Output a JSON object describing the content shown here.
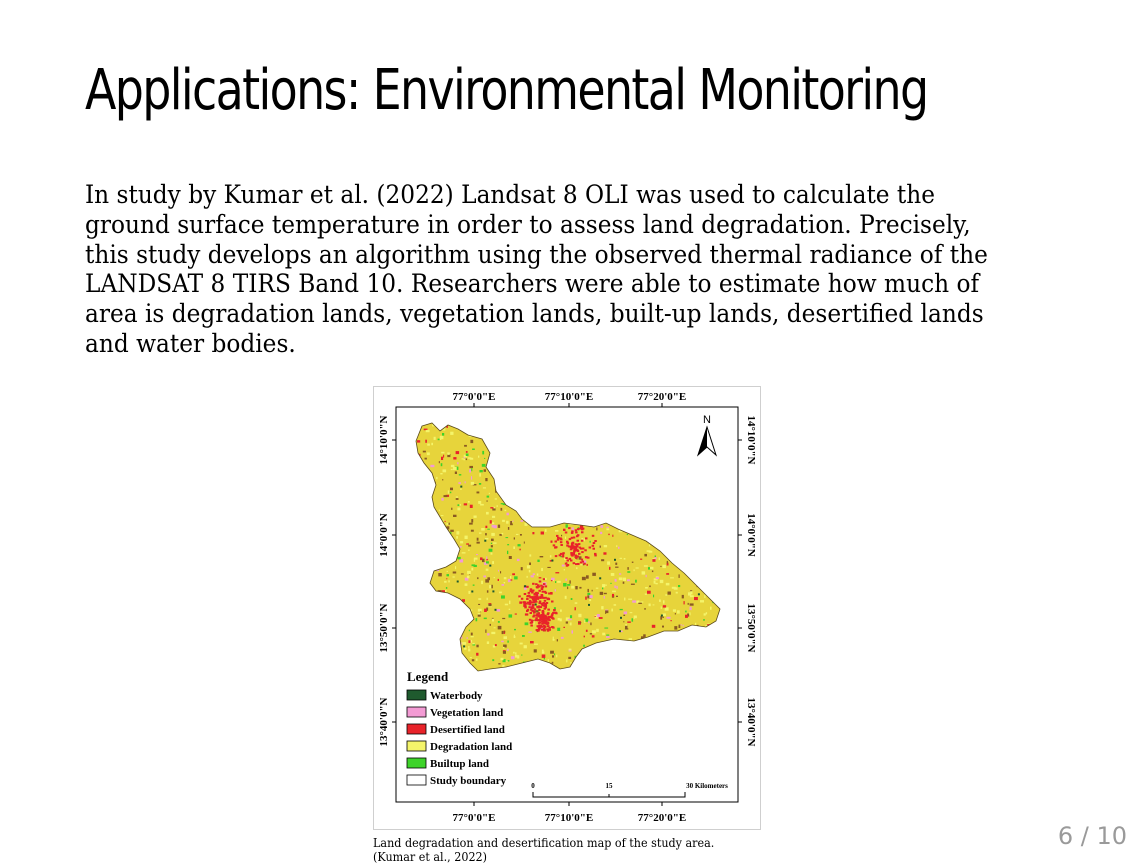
{
  "slide": {
    "title": "Applications: Environmental Monitoring",
    "body": "In study by Kumar et al. (2022) Landsat 8 OLI was used to calculate the ground surface temperature in order to assess land degradation. Precisely, this study develops an algorithm using the observed thermal radiance of the LANDSAT 8 TIRS Band 10. Researchers were able to estimate how much of area is degradation lands, vegetation lands, built-up lands, desertified lands and water bodies.",
    "page_number": "6 / 10"
  },
  "figure": {
    "caption_line1": "Land degradation and desertification map of the study area.",
    "caption_line2": "(Kumar et al., 2022)",
    "top_ticks": [
      "77°0'0\"E",
      "77°10'0\"E",
      "77°20'0\"E"
    ],
    "bottom_ticks": [
      "77°0'0\"E",
      "77°10'0\"E",
      "77°20'0\"E"
    ],
    "left_ticks": [
      "14°10'0\"N",
      "14°0'0\"N",
      "13°50'0\"N",
      "13°40'0\"N"
    ],
    "right_ticks": [
      "14°10'0\"N",
      "14°0'0\"N",
      "13°50'0\"N",
      "13°40'0\"N"
    ],
    "north_label": "N",
    "legend": {
      "title": "Legend",
      "items": [
        {
          "label": "Waterbody",
          "color": "#1f5a2e"
        },
        {
          "label": "Vegetation land",
          "color": "#f39bd4"
        },
        {
          "label": "Desertified land",
          "color": "#e8232a"
        },
        {
          "label": "Degradation land",
          "color": "#f4f46a"
        },
        {
          "label": "Builtup land",
          "color": "#3ed32a"
        },
        {
          "label": "Study boundary",
          "color": "#ffffff"
        }
      ]
    },
    "scale": {
      "start": "0",
      "mid": "15",
      "end": "30 Kilometers"
    },
    "colors": {
      "base_land": "#e7d43b",
      "degradation": "#f4f46a",
      "desertified": "#e8232a",
      "builtup": "#3ed32a",
      "vegetation": "#f39bd4",
      "waterbody": "#1f5a2e",
      "brown": "#8a5a22"
    }
  }
}
